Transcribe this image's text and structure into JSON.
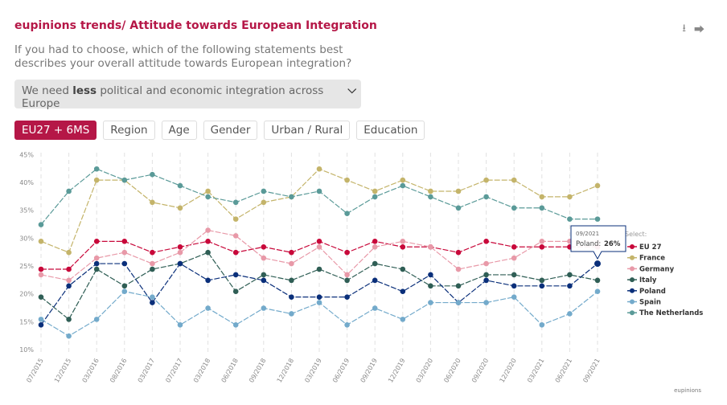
{
  "header": {
    "title": "eupinions trends/ Attitude towards European Integration",
    "question": "If you had to choose, which of the following statements best describes your overall attitude towards European integration?",
    "select_pre": "We need ",
    "select_bold": "less",
    "select_post": " political and economic integration across Europe",
    "download_icon": "download-icon",
    "share_icon": "share-icon"
  },
  "tabs": [
    {
      "label": "EU27 + 6MS",
      "active": true
    },
    {
      "label": "Region"
    },
    {
      "label": "Age"
    },
    {
      "label": "Gender"
    },
    {
      "label": "Urban / Rural"
    },
    {
      "label": "Education"
    }
  ],
  "footer": "eupinions",
  "chart_data": {
    "type": "line",
    "x": [
      "07/2015",
      "12/2015",
      "03/2016",
      "08/2016",
      "03/2017",
      "07/2017",
      "03/2018",
      "06/2018",
      "09/2018",
      "12/2018",
      "03/2019",
      "06/2019",
      "09/2019",
      "12/2019",
      "03/2020",
      "06/2020",
      "09/2020",
      "12/2020",
      "03/2021",
      "06/2021",
      "09/2021"
    ],
    "ylim": [
      10,
      45
    ],
    "yticks": [
      "10%",
      "15%",
      "20%",
      "25%",
      "30%",
      "35%",
      "40%",
      "45%"
    ],
    "grid": "vertical dashed",
    "legend_title": "Select:",
    "legend_placement": "right",
    "series": [
      {
        "name": "EU 27",
        "color": "#c8083a",
        "values": [
          25,
          25,
          30,
          30,
          28,
          29,
          30,
          28,
          29,
          28,
          30,
          28,
          30,
          29,
          29,
          28,
          30,
          29,
          29,
          29,
          29
        ]
      },
      {
        "name": "France",
        "color": "#c4b46a",
        "values": [
          30,
          28,
          41,
          41,
          37,
          36,
          39,
          34,
          37,
          38,
          43,
          41,
          39,
          41,
          39,
          39,
          41,
          41,
          38,
          38,
          40
        ]
      },
      {
        "name": "Germany",
        "color": "#e899a8",
        "values": [
          24,
          23,
          27,
          28,
          26,
          28,
          32,
          31,
          27,
          26,
          29,
          24,
          29,
          30,
          29,
          25,
          26,
          27,
          30,
          30,
          30
        ]
      },
      {
        "name": "Italy",
        "color": "#2f5e55",
        "values": [
          20,
          16,
          25,
          22,
          25,
          26,
          28,
          21,
          24,
          23,
          25,
          23,
          26,
          25,
          22,
          22,
          24,
          24,
          23,
          24,
          23
        ]
      },
      {
        "name": "Poland",
        "color": "#0a2f7a",
        "values": [
          15,
          22,
          26,
          26,
          19,
          26,
          23,
          24,
          23,
          20,
          20,
          20,
          23,
          21,
          24,
          19,
          23,
          22,
          22,
          22,
          26
        ]
      },
      {
        "name": "Spain",
        "color": "#73aacb",
        "values": [
          16,
          13,
          16,
          21,
          20,
          15,
          18,
          15,
          18,
          17,
          19,
          15,
          18,
          16,
          19,
          19,
          19,
          20,
          15,
          17,
          21
        ]
      },
      {
        "name": "The Netherlands",
        "color": "#5a9a98",
        "values": [
          33,
          39,
          43,
          41,
          42,
          40,
          38,
          37,
          39,
          38,
          39,
          35,
          38,
          40,
          38,
          36,
          38,
          36,
          36,
          34,
          34
        ]
      }
    ],
    "tooltip": {
      "date": "09/2021",
      "series": "Poland",
      "label": "Poland:",
      "value": "26%"
    }
  }
}
